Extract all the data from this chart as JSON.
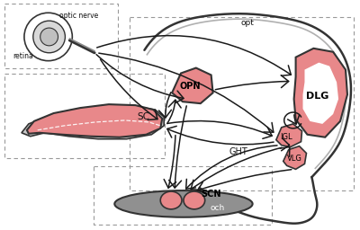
{
  "bg_color": "#ffffff",
  "pink": "#e8888a",
  "pink_dark": "#d06060",
  "gray_dark": "#909090",
  "gray_mid": "#b0b0b0",
  "gray_light": "#c8c8c8",
  "outline": "#333333",
  "arrow_c": "#1a1a1a",
  "dash_c": "#999999",
  "text_c": "#111111",
  "labels": {
    "optic_nerve": "optic nerve",
    "retina": "retina",
    "opt": "opt",
    "OPN": "OPN",
    "SC": "SC",
    "DLG": "DLG",
    "IGL": "IGL",
    "VLG": "VLG",
    "GHT": "GHT",
    "SCN": "SCN",
    "och": "och"
  }
}
